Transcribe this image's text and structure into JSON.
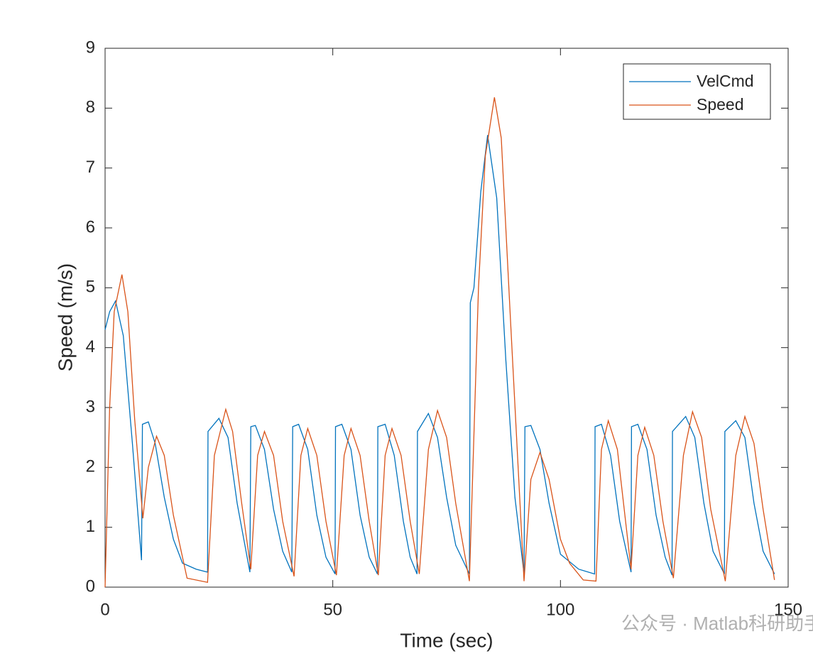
{
  "chart_data": {
    "type": "line",
    "xlabel": "Time (sec)",
    "ylabel": "Speed (m/s)",
    "xlim": [
      0,
      150
    ],
    "ylim": [
      0,
      9
    ],
    "xticks": [
      0,
      50,
      100,
      150
    ],
    "yticks": [
      0,
      1,
      2,
      3,
      4,
      5,
      6,
      7,
      8,
      9
    ],
    "legend": "upper right",
    "box": true,
    "series": [
      {
        "name": "VelCmd",
        "color": "#0072bd",
        "x": [
          0,
          1,
          2.3,
          4,
          6,
          8,
          8.2,
          9.5,
          11,
          13,
          15,
          17,
          20,
          22.5,
          22.6,
          25,
          27,
          29,
          31.8,
          32,
          33,
          35,
          37,
          39,
          41,
          41.2,
          42.5,
          44.5,
          46.5,
          48.5,
          50.5,
          50.6,
          52,
          54,
          56,
          58,
          59.8,
          59.9,
          61.5,
          63.5,
          65.5,
          67,
          68.5,
          68.6,
          71,
          73,
          75,
          77,
          80,
          80.2,
          81,
          82.5,
          84,
          86,
          88,
          90,
          92,
          92.2,
          93.5,
          95.5,
          97.5,
          100,
          104,
          107.5,
          107.6,
          109,
          111,
          113,
          115.5,
          115.6,
          117,
          119,
          121,
          123,
          124.5,
          124.6,
          127.5,
          129.5,
          131.5,
          133.5,
          136,
          136.1,
          138.5,
          140.5,
          142.5,
          144.5,
          147
        ],
        "values": [
          4.3,
          4.6,
          4.78,
          4.2,
          2.4,
          0.45,
          2.72,
          2.76,
          2.4,
          1.5,
          0.8,
          0.4,
          0.3,
          0.25,
          2.6,
          2.82,
          2.5,
          1.4,
          0.25,
          2.68,
          2.7,
          2.3,
          1.3,
          0.6,
          0.25,
          2.68,
          2.72,
          2.3,
          1.2,
          0.5,
          0.22,
          2.68,
          2.72,
          2.3,
          1.2,
          0.5,
          0.22,
          2.68,
          2.72,
          2.2,
          1.1,
          0.5,
          0.22,
          2.6,
          2.9,
          2.5,
          1.5,
          0.7,
          0.22,
          4.75,
          5.0,
          6.6,
          7.55,
          6.5,
          3.8,
          1.5,
          0.22,
          2.68,
          2.7,
          2.3,
          1.4,
          0.55,
          0.3,
          0.22,
          2.68,
          2.72,
          2.2,
          1.1,
          0.25,
          2.68,
          2.72,
          2.3,
          1.2,
          0.5,
          0.2,
          2.6,
          2.85,
          2.5,
          1.4,
          0.6,
          0.22,
          2.6,
          2.78,
          2.5,
          1.4,
          0.6,
          0.22
        ]
      },
      {
        "name": "Speed",
        "color": "#d95319",
        "x": [
          0,
          1,
          2,
          3.7,
          5,
          6.5,
          8.3,
          9.5,
          11.3,
          13,
          15,
          18,
          22.5,
          24,
          26.5,
          28,
          30,
          32,
          33.5,
          35,
          37,
          39,
          41.5,
          43,
          44.5,
          46.5,
          48.5,
          50.8,
          52.5,
          54,
          56,
          58,
          60,
          61.5,
          63,
          65,
          67,
          69,
          71,
          73,
          75,
          77,
          80,
          82,
          83.5,
          85.5,
          87,
          89,
          92,
          93.5,
          95.5,
          97.5,
          100,
          102,
          105,
          107.8,
          109,
          110.5,
          112.5,
          115.5,
          117,
          118.5,
          120.5,
          122.5,
          124.8,
          127,
          129,
          131,
          133,
          136.2,
          138.5,
          140.5,
          142.5,
          144.5,
          147
        ],
        "values": [
          0,
          3.0,
          4.6,
          5.22,
          4.6,
          2.8,
          1.15,
          2.0,
          2.52,
          2.2,
          1.2,
          0.15,
          0.08,
          2.2,
          2.97,
          2.6,
          1.4,
          0.3,
          2.2,
          2.6,
          2.2,
          1.1,
          0.18,
          2.2,
          2.65,
          2.2,
          1.1,
          0.2,
          2.2,
          2.65,
          2.2,
          1.1,
          0.2,
          2.2,
          2.65,
          2.2,
          1.1,
          0.22,
          2.3,
          2.95,
          2.5,
          1.4,
          0.1,
          5.0,
          7.2,
          8.18,
          7.5,
          4.5,
          0.1,
          1.8,
          2.25,
          1.8,
          0.8,
          0.4,
          0.12,
          0.1,
          2.3,
          2.78,
          2.3,
          0.3,
          2.2,
          2.67,
          2.2,
          1.1,
          0.15,
          2.2,
          2.93,
          2.5,
          1.3,
          0.1,
          2.2,
          2.85,
          2.4,
          1.3,
          0.12
        ]
      }
    ]
  },
  "watermark": "公众号 · Matlab科研助手"
}
